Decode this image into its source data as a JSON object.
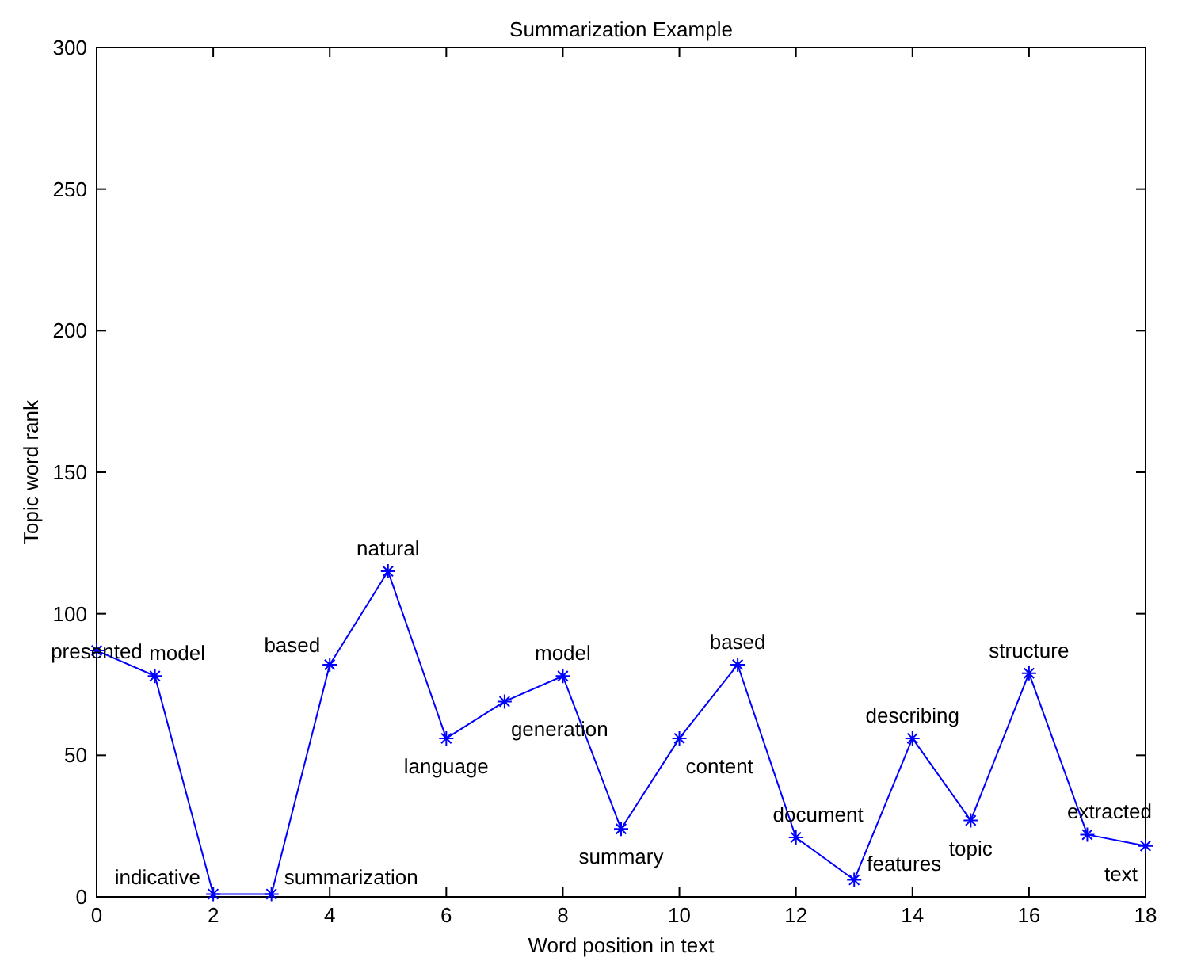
{
  "chart_data": {
    "type": "line",
    "title": "Summarization Example",
    "xlabel": "Word position in text",
    "ylabel": "Topic word rank",
    "x": [
      0,
      1,
      2,
      3,
      4,
      5,
      6,
      7,
      8,
      9,
      10,
      11,
      12,
      13,
      14,
      15,
      16,
      17,
      18
    ],
    "series": [
      {
        "color": "#0000ff",
        "values": [
          87,
          78,
          1,
          1,
          82,
          115,
          56,
          69,
          78,
          24,
          56,
          82,
          21,
          6,
          56,
          27,
          79,
          22,
          18
        ]
      }
    ],
    "xlim": [
      0,
      18
    ],
    "xticks": [
      0,
      2,
      4,
      6,
      8,
      10,
      12,
      14,
      16,
      18
    ],
    "ylim": [
      0,
      300
    ],
    "yticks": [
      0,
      50,
      100,
      150,
      200,
      250,
      300
    ],
    "grid": false,
    "marker": "cross",
    "line_style": "solid",
    "annotations": [
      {
        "text": "presented",
        "x": 0,
        "y": 87
      },
      {
        "text": "model",
        "x": 1,
        "y": 78
      },
      {
        "text": "indicative",
        "x": 2,
        "y": 1
      },
      {
        "text": "summarization",
        "x": 3,
        "y": 1
      },
      {
        "text": "based",
        "x": 4,
        "y": 82
      },
      {
        "text": "natural",
        "x": 5,
        "y": 115
      },
      {
        "text": "language",
        "x": 6,
        "y": 56
      },
      {
        "text": "generation",
        "x": 7,
        "y": 69
      },
      {
        "text": "model",
        "x": 8,
        "y": 78
      },
      {
        "text": "summary",
        "x": 9,
        "y": 24
      },
      {
        "text": "content",
        "x": 10,
        "y": 56
      },
      {
        "text": "based",
        "x": 11,
        "y": 82
      },
      {
        "text": "document",
        "x": 12,
        "y": 21
      },
      {
        "text": "features",
        "x": 13,
        "y": 6
      },
      {
        "text": "describing",
        "x": 14,
        "y": 56
      },
      {
        "text": "topic",
        "x": 15,
        "y": 27
      },
      {
        "text": "structure",
        "x": 16,
        "y": 79
      },
      {
        "text": "extracted",
        "x": 17,
        "y": 22
      },
      {
        "text": "text",
        "x": 18,
        "y": 18
      }
    ]
  }
}
